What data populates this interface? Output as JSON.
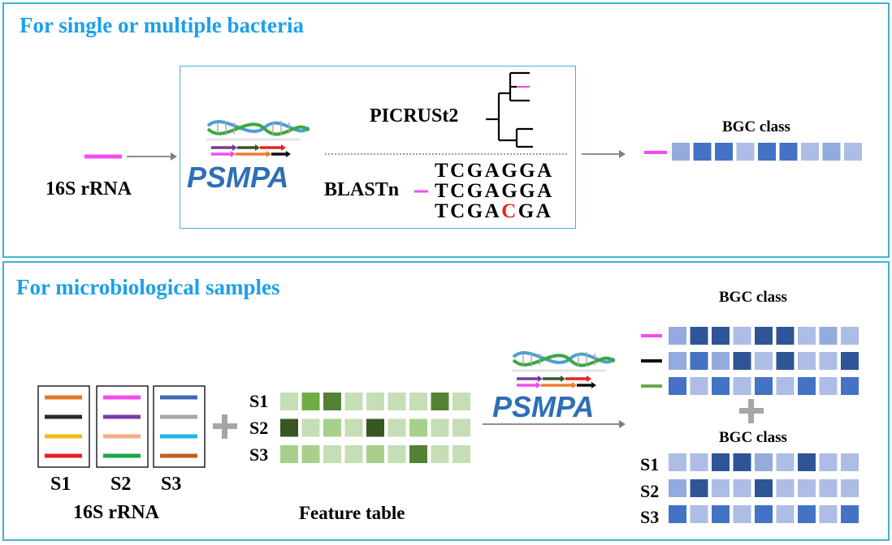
{
  "top_panel": {
    "title": "For single or multiple bacteria",
    "input_label": "16S rRNA",
    "logo_text": "PSMPA",
    "picrust_label": "PICRUSt2",
    "blast_label": "BLASTn",
    "sequences": [
      {
        "pre": "TCGAGGA",
        "mut": "",
        "post": ""
      },
      {
        "pre": "TCGAGGA",
        "mut": "",
        "post": ""
      },
      {
        "pre": "TCGA",
        "mut": "C",
        "post": "GA"
      }
    ],
    "bgc_label": "BGC class",
    "bgc_row": [
      2,
      3,
      3,
      1,
      3,
      3,
      1,
      2,
      1
    ]
  },
  "bottom_panel": {
    "title": "For microbiological samples",
    "sample_labels": [
      "S1",
      "S2",
      "S3"
    ],
    "rrna_label": "16S rRNA",
    "sample_line_colors": [
      [
        "#e07a2a",
        "#2a2a2a",
        "#f3bc14",
        "#e81f1f"
      ],
      [
        "#f24cf0",
        "#7a3aa6",
        "#f6ae82",
        "#17a64f"
      ],
      [
        "#3d6bb8",
        "#a8a8a8",
        "#1cb6ea",
        "#c0601c"
      ]
    ],
    "feature_table_label": "Feature table",
    "feature_rows": [
      {
        "label": "S1",
        "levels": [
          1,
          3,
          4,
          1,
          1,
          1,
          1,
          4,
          1
        ]
      },
      {
        "label": "S2",
        "levels": [
          5,
          1,
          2,
          1,
          5,
          1,
          2,
          1,
          1
        ]
      },
      {
        "label": "S3",
        "levels": [
          2,
          2,
          1,
          1,
          2,
          1,
          4,
          1,
          1
        ]
      }
    ],
    "logo_text": "PSMPA",
    "bgc_label_top": "BGC class",
    "bgc_top_rows": [
      {
        "marker_color": "#f24cf0",
        "levels": [
          2,
          4,
          4,
          1,
          4,
          4,
          1,
          2,
          1
        ]
      },
      {
        "marker_color": "#111111",
        "levels": [
          2,
          3,
          2,
          4,
          1,
          4,
          1,
          1,
          4
        ]
      },
      {
        "marker_color": "#6aa84f",
        "levels": [
          3,
          1,
          3,
          1,
          3,
          1,
          3,
          1,
          3
        ]
      }
    ],
    "bgc_label_bottom": "BGC class",
    "bgc_bottom_rows": [
      {
        "label": "S1",
        "levels": [
          1,
          1,
          4,
          4,
          2,
          1,
          4,
          1,
          1
        ]
      },
      {
        "label": "S2",
        "levels": [
          2,
          4,
          1,
          1,
          4,
          1,
          1,
          1,
          1
        ]
      },
      {
        "label": "S3",
        "levels": [
          3,
          1,
          3,
          1,
          3,
          1,
          3,
          1,
          3
        ]
      }
    ]
  },
  "colors": {
    "accent": "#1ca0e8",
    "border": "#3fb1d8",
    "pink": "#f24cf0",
    "mutation": "#e8231e",
    "blue_scale": [
      "#dfe5f5",
      "#aebde6",
      "#93abdd",
      "#4472c4",
      "#2f5597"
    ],
    "green_scale": [
      "#e2efd9",
      "#c5deb5",
      "#a8d08d",
      "#70ad47",
      "#548235",
      "#375623"
    ]
  }
}
